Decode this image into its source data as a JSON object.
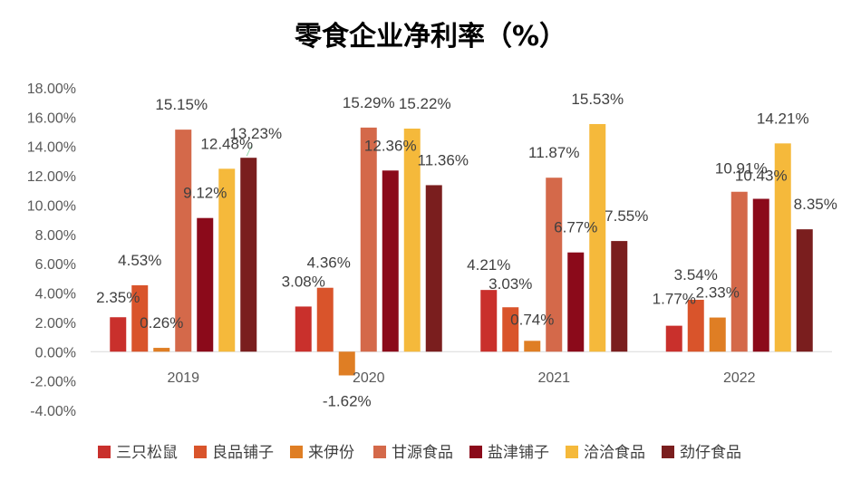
{
  "chart_data": {
    "type": "bar",
    "title": "零食企业净利率（%）",
    "categories": [
      "2019",
      "2020",
      "2021",
      "2022"
    ],
    "ylim": [
      -4,
      18
    ],
    "y_ticks": [
      18,
      16,
      14,
      12,
      10,
      8,
      6,
      4,
      2,
      0,
      -2,
      -4
    ],
    "y_tick_labels": [
      "18.00%",
      "16.00%",
      "14.00%",
      "12.00%",
      "10.00%",
      "8.00%",
      "6.00%",
      "4.00%",
      "2.00%",
      "0.00%",
      "-2.00%",
      "-4.00%"
    ],
    "grid": false,
    "legend_position": "bottom",
    "series": [
      {
        "name": "三只松鼠",
        "color": "#C9302C",
        "values": [
          2.35,
          3.08,
          4.21,
          1.77
        ],
        "labels": [
          "2.35%",
          "3.08%",
          "4.21%",
          "1.77%"
        ]
      },
      {
        "name": "良品铺子",
        "color": "#D9542B",
        "values": [
          4.53,
          4.36,
          3.03,
          3.54
        ],
        "labels": [
          "4.53%",
          "4.36%",
          "3.03%",
          "3.54%"
        ]
      },
      {
        "name": "来伊份",
        "color": "#DF7E24",
        "values": [
          0.26,
          -1.62,
          0.74,
          2.33
        ],
        "labels": [
          "0.26%",
          "-1.62%",
          "0.74%",
          "2.33%"
        ]
      },
      {
        "name": "甘源食品",
        "color": "#D4694A",
        "values": [
          15.15,
          15.29,
          11.87,
          10.91
        ],
        "labels": [
          "15.15%",
          "15.29%",
          "11.87%",
          "10.91%"
        ]
      },
      {
        "name": "盐津铺子",
        "color": "#8B0A1A",
        "values": [
          9.12,
          12.36,
          6.77,
          10.43
        ],
        "labels": [
          "9.12%",
          "12.36%",
          "6.77%",
          "10.43%"
        ]
      },
      {
        "name": "洽洽食品",
        "color": "#F5B93B",
        "values": [
          12.48,
          15.22,
          15.53,
          14.21
        ],
        "labels": [
          "12.48%",
          "15.22%",
          "15.53%",
          "14.21%"
        ]
      },
      {
        "name": "劲仔食品",
        "color": "#7A1E1E",
        "values": [
          13.23,
          11.36,
          7.55,
          8.35
        ],
        "labels": [
          "13.23%",
          "11.36%",
          "7.55%",
          "8.35%"
        ]
      }
    ]
  }
}
